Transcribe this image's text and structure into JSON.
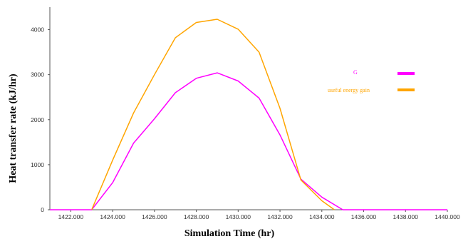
{
  "chart_data": {
    "type": "line",
    "title": "",
    "xlabel": "Simulation Time (hr)",
    "ylabel": "Heat transfer rate (kJ/hr)",
    "xlim": [
      1421,
      1440
    ],
    "ylim": [
      0,
      4500
    ],
    "x_ticks": [
      "1422.000",
      "1424.000",
      "1426.000",
      "1428.000",
      "1430.000",
      "1432.000",
      "1434.000",
      "1436.000",
      "1438.000",
      "1440.000"
    ],
    "y_ticks": [
      "0",
      "1000",
      "2000",
      "3000",
      "4000"
    ],
    "grid": false,
    "legend_position": "upper-right",
    "series": [
      {
        "name": "G",
        "color": "#ff00ff",
        "x": [
          1419.5,
          1423,
          1424,
          1425,
          1426,
          1427,
          1428,
          1429,
          1430,
          1431,
          1432,
          1433,
          1434,
          1435,
          1440
        ],
        "y": [
          0,
          0,
          600,
          1480,
          2020,
          2600,
          2920,
          3040,
          2860,
          2480,
          1660,
          680,
          280,
          0,
          0
        ]
      },
      {
        "name": "useful energy gain",
        "color": "#ffa500",
        "x": [
          1423,
          1424,
          1425,
          1426,
          1427,
          1428,
          1429,
          1430,
          1431,
          1432,
          1433,
          1434,
          1434.6
        ],
        "y": [
          0,
          1100,
          2150,
          3000,
          3820,
          4160,
          4230,
          4010,
          3500,
          2250,
          660,
          200,
          0
        ]
      }
    ]
  }
}
